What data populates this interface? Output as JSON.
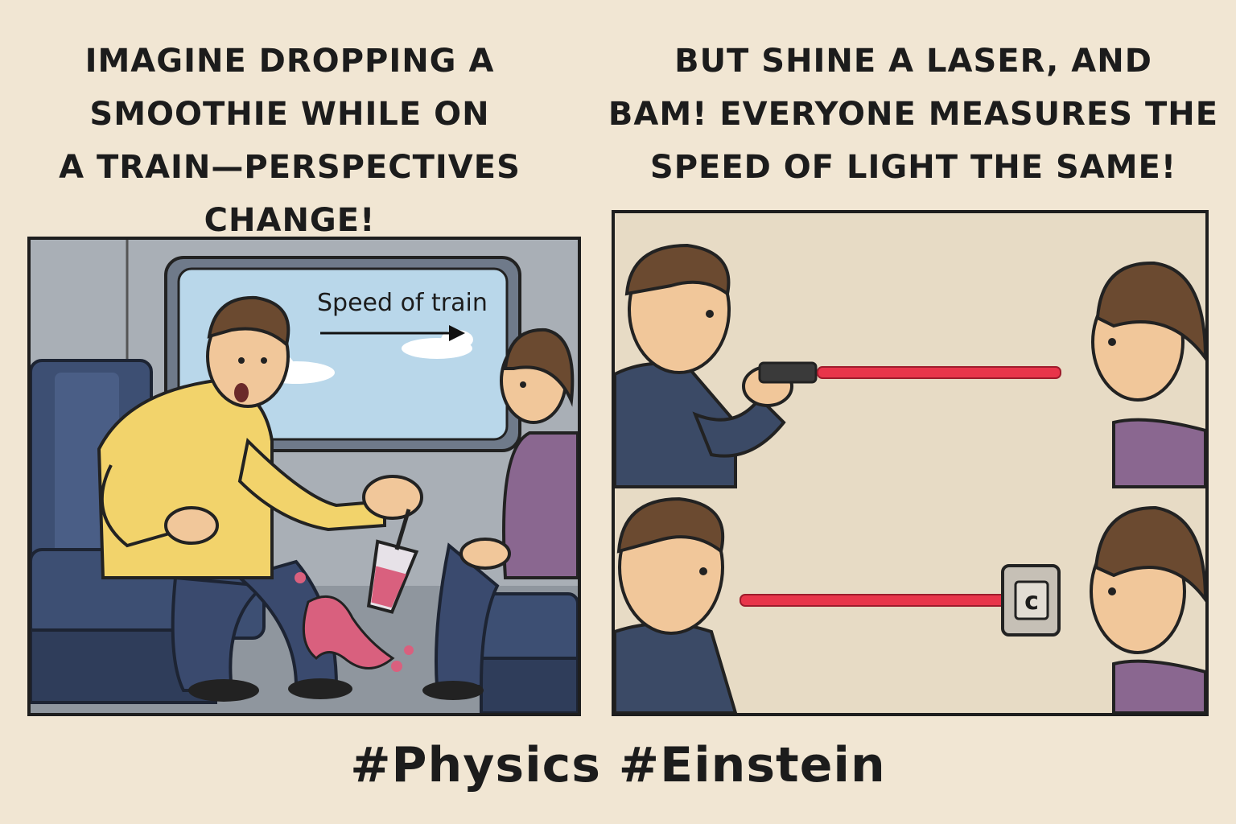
{
  "captions": {
    "left": [
      "IMAGINE DROPPING A",
      "SMOOTHIE WHILE ON",
      "A TRAIN—PERSPECTIVES",
      "CHANGE!"
    ],
    "right": [
      "BUT SHINE A LASER, AND",
      "BAM! EVERYONE MEASURES THE",
      "SPEED OF LIGHT THE SAME!"
    ]
  },
  "panel_left": {
    "window_label": "Speed of train"
  },
  "panel_right": {
    "detector_label": "c"
  },
  "hashtags": "#Physics #Einstein",
  "colors": {
    "background": "#f1e6d3",
    "panel_border": "#1e1e1e",
    "shirt_yellow": "#f2d36b",
    "shirt_purple": "#8a6790",
    "jacket_navy": "#3b4a66",
    "seat_blue": "#3d4f73",
    "laser_red": "#e8354a",
    "smoothie_pink": "#d9607e",
    "sky": "#b7d6e8"
  }
}
